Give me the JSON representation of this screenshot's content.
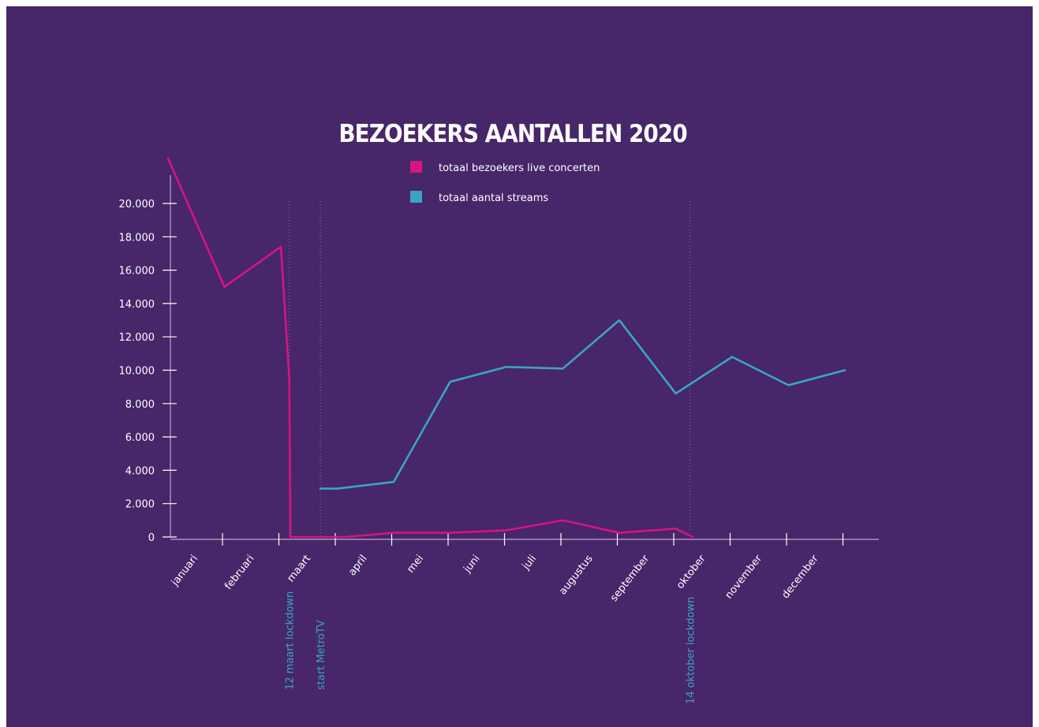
{
  "chart_data": {
    "type": "line",
    "title": "BEZOEKERS AANTALLEN 2020",
    "categories": [
      "januari",
      "februari",
      "maart",
      "april",
      "mei",
      "juni",
      "juli",
      "augustus",
      "september",
      "oktober",
      "november",
      "december"
    ],
    "y_ticks": [
      "0",
      "2.000",
      "4.000",
      "6.000",
      "8.000",
      "10.000",
      "12.000",
      "14.000",
      "16.000",
      "18.000",
      "20.000"
    ],
    "ylim": [
      0,
      21500
    ],
    "grid": false,
    "legend_position": "top-center",
    "series": [
      {
        "name": "totaal bezoekers live concerten",
        "color": "#d6157f",
        "points": [
          {
            "x": 0,
            "y": 22700
          },
          {
            "x": 1,
            "y": 15000
          },
          {
            "x": 2,
            "y": 17400
          },
          {
            "x": 2.15,
            "y": 9500
          },
          {
            "x": 2.17,
            "y": 0
          },
          {
            "x": 3.15,
            "y": 0
          },
          {
            "x": 4,
            "y": 250
          },
          {
            "x": 5,
            "y": 250
          },
          {
            "x": 6,
            "y": 400
          },
          {
            "x": 7,
            "y": 1000
          },
          {
            "x": 8,
            "y": 250
          },
          {
            "x": 9,
            "y": 500
          },
          {
            "x": 9.3,
            "y": 0
          }
        ]
      },
      {
        "name": "totaal aantal streams",
        "color": "#39a5c4",
        "points": [
          {
            "x": 2.7,
            "y": 2900
          },
          {
            "x": 3,
            "y": 2900
          },
          {
            "x": 4,
            "y": 3300
          },
          {
            "x": 5,
            "y": 9300
          },
          {
            "x": 6,
            "y": 10200
          },
          {
            "x": 7,
            "y": 10100
          },
          {
            "x": 8,
            "y": 13000
          },
          {
            "x": 9,
            "y": 8600
          },
          {
            "x": 10,
            "y": 10800
          },
          {
            "x": 11,
            "y": 9100
          },
          {
            "x": 12,
            "y": 10000
          }
        ]
      }
    ],
    "annotations": [
      {
        "text": "12 maart lockdown",
        "x": 2.15
      },
      {
        "text": "start MetroTV",
        "x": 2.7
      },
      {
        "text": "14 oktober lockdown",
        "x": 9.25
      }
    ]
  }
}
